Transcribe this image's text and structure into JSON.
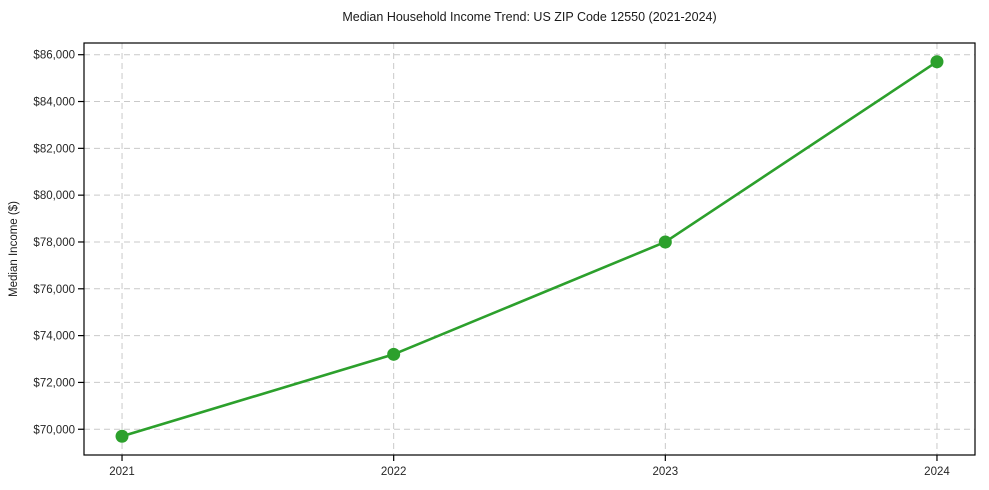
{
  "chart_data": {
    "type": "line",
    "title": "Median Household Income Trend: US ZIP Code 12550 (2021-2024)",
    "xlabel": "",
    "ylabel": "Median Income ($)",
    "x": [
      2021,
      2022,
      2023,
      2024
    ],
    "series": [
      {
        "name": "Median Household Income",
        "values": [
          69700,
          73200,
          78000,
          85700
        ]
      }
    ],
    "x_ticks": [
      2021,
      2022,
      2023,
      2024
    ],
    "x_tick_labels": [
      "2021",
      "2022",
      "2023",
      "2024"
    ],
    "y_ticks": [
      70000,
      72000,
      74000,
      76000,
      78000,
      80000,
      82000,
      84000,
      86000
    ],
    "y_tick_labels": [
      "$70,000",
      "$72,000",
      "$74,000",
      "$76,000",
      "$78,000",
      "$80,000",
      "$82,000",
      "$84,000",
      "$86,000"
    ],
    "xlim": [
      2020.86,
      2024.14
    ],
    "ylim": [
      68900,
      86500
    ],
    "grid": true,
    "legend": "none",
    "colors": {
      "line": "#2ca02c",
      "marker": "#2ca02c",
      "grid": "#c9c9c9",
      "axis_border": "#000000",
      "tick": "#000000",
      "text": "#262626",
      "background": "#ffffff"
    }
  }
}
